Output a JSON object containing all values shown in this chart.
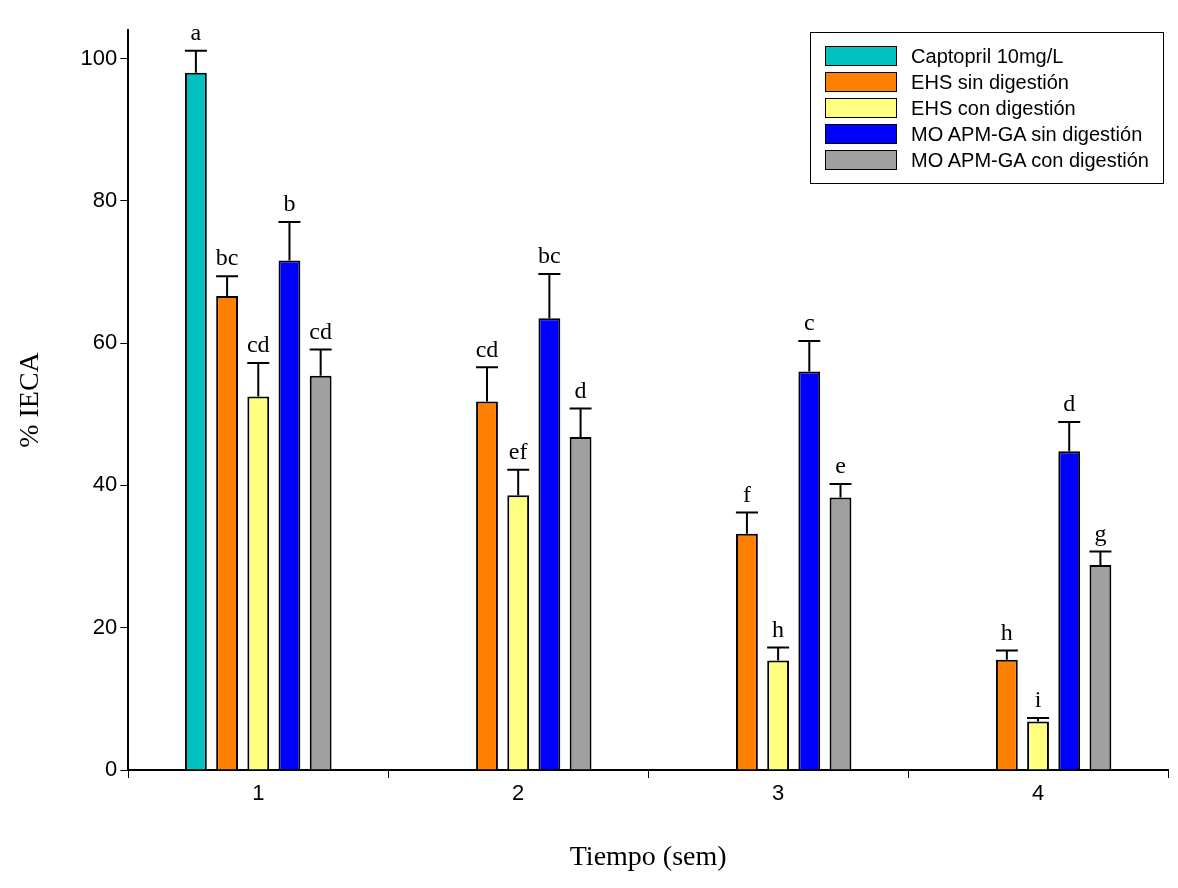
{
  "chart_data": {
    "type": "bar",
    "xlabel": "Tiempo (sem)",
    "ylabel": "% IECA",
    "categories": [
      "1",
      "2",
      "3",
      "4"
    ],
    "series": [
      {
        "name": "Captopril 10mg/L",
        "color": "#00c0c0",
        "values": [
          98.0,
          null,
          null,
          null
        ],
        "errors": [
          [
            98.0,
            101.1
          ],
          null,
          null,
          null
        ],
        "value_labels": [
          "a",
          null,
          null,
          null
        ]
      },
      {
        "name": "EHS sin digestión",
        "color": "#ff8000",
        "values": [
          66.6,
          51.8,
          33.2,
          15.5
        ],
        "errors": [
          [
            66.6,
            69.4
          ],
          [
            51.8,
            56.6
          ],
          [
            33.2,
            36.2
          ],
          [
            15.5,
            16.8
          ]
        ],
        "value_labels": [
          "bc",
          "cd",
          "f",
          "h"
        ]
      },
      {
        "name": "EHS con digestión",
        "color": "#ffff80",
        "values": [
          52.5,
          38.6,
          15.4,
          6.8
        ],
        "errors": [
          [
            52.5,
            57.2
          ],
          [
            38.6,
            42.2
          ],
          [
            15.4,
            17.2
          ],
          [
            6.8,
            7.3
          ]
        ],
        "value_labels": [
          "cd",
          "ef",
          "h",
          "i"
        ]
      },
      {
        "name": "MO APM-GA sin digestión",
        "color": "#0000ff",
        "values": [
          71.6,
          63.5,
          56.0,
          44.8
        ],
        "errors": [
          [
            71.6,
            77.0
          ],
          [
            63.5,
            69.7
          ],
          [
            56.0,
            60.3
          ],
          [
            44.8,
            48.9
          ]
        ],
        "value_labels": [
          "b",
          "bc",
          "c",
          "d"
        ]
      },
      {
        "name": "MO APM-GA con digestión",
        "color": "#a0a0a0",
        "values": [
          55.4,
          46.8,
          38.3,
          28.8
        ],
        "errors": [
          [
            55.4,
            59.1
          ],
          [
            46.8,
            50.8
          ],
          [
            38.3,
            40.2
          ],
          [
            28.8,
            30.7
          ]
        ],
        "value_labels": [
          "cd",
          "d",
          "e",
          "g"
        ]
      }
    ],
    "ylim": [
      0,
      104
    ],
    "yticks": [
      0,
      20,
      40,
      60,
      80,
      100
    ],
    "legend": "top right"
  }
}
